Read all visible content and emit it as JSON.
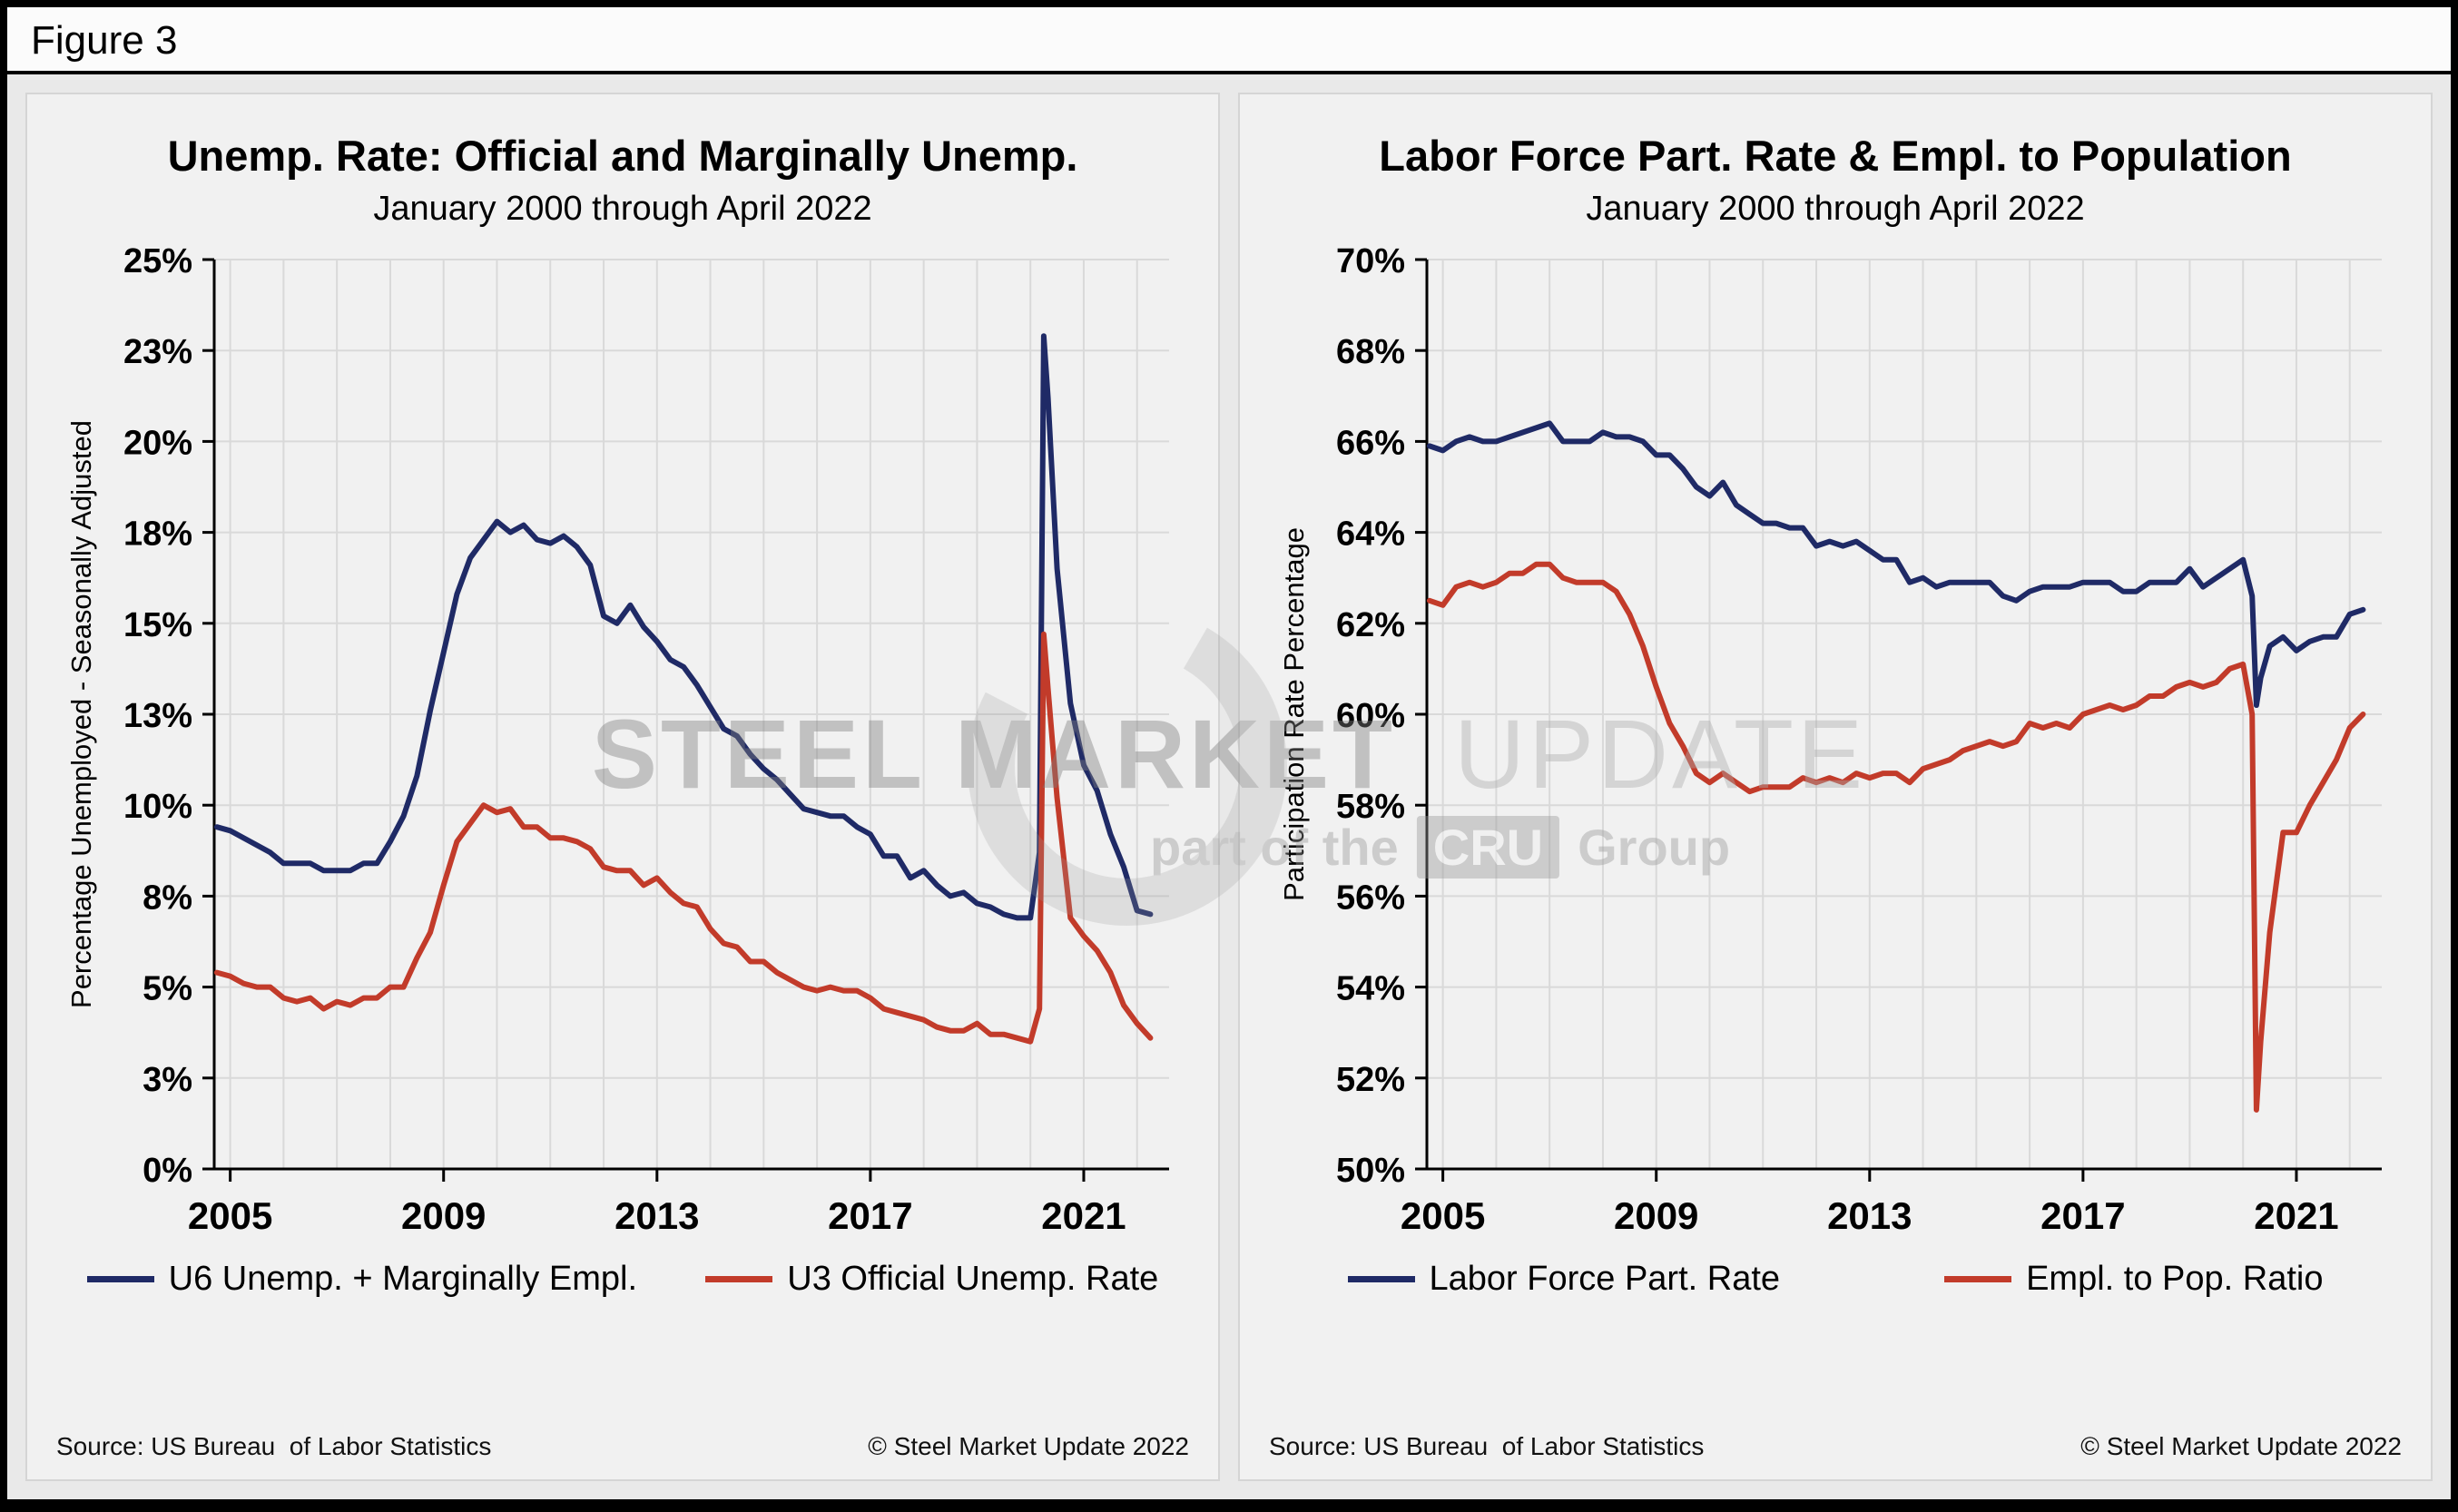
{
  "figure_label": "Figure 3",
  "watermark": {
    "steel_market": "STEEL MARKET",
    "update": "UPDATE",
    "part_of_the": "part of the",
    "cru": "CRU",
    "group": "Group"
  },
  "colors": {
    "navy": "#1F2A66",
    "red": "#C23B2A",
    "grid": "#d9d9d9",
    "axis": "#000000"
  },
  "chart_data": [
    {
      "type": "line",
      "title": "Unemp. Rate: Official and Marginally Unemp.",
      "subtitle": "January 2000 through April 2022",
      "xlabel": "",
      "ylabel": "Percentage Unemployed - Seasonally Adjusted",
      "source": "Source: US Bureau  of Labor Statistics",
      "copyright": "© Steel Market Update 2022",
      "grid": true,
      "legend_position": "bottom",
      "xlim": [
        2004.7,
        2022.6
      ],
      "ylim": [
        0,
        25
      ],
      "yticks": [
        0,
        2.5,
        5,
        7.5,
        10,
        12.5,
        15,
        17.5,
        20,
        22.5,
        25
      ],
      "ytick_labels": [
        "0%",
        "3%",
        "5%",
        "8%",
        "10%",
        "13%",
        "15%",
        "18%",
        "20%",
        "23%",
        "25%"
      ],
      "xticks": [
        2005,
        2009,
        2013,
        2017,
        2021
      ],
      "x": [
        2004.75,
        2005.0,
        2005.25,
        2005.5,
        2005.75,
        2006.0,
        2006.25,
        2006.5,
        2006.75,
        2007.0,
        2007.25,
        2007.5,
        2007.75,
        2008.0,
        2008.25,
        2008.5,
        2008.75,
        2009.0,
        2009.25,
        2009.5,
        2009.75,
        2010.0,
        2010.25,
        2010.5,
        2010.75,
        2011.0,
        2011.25,
        2011.5,
        2011.75,
        2012.0,
        2012.25,
        2012.5,
        2012.75,
        2013.0,
        2013.25,
        2013.5,
        2013.75,
        2014.0,
        2014.25,
        2014.5,
        2014.75,
        2015.0,
        2015.25,
        2015.5,
        2015.75,
        2016.0,
        2016.25,
        2016.5,
        2016.75,
        2017.0,
        2017.25,
        2017.5,
        2017.75,
        2018.0,
        2018.25,
        2018.5,
        2018.75,
        2019.0,
        2019.25,
        2019.5,
        2019.75,
        2020.0,
        2020.17,
        2020.25,
        2020.33,
        2020.5,
        2020.75,
        2021.0,
        2021.25,
        2021.5,
        2021.75,
        2022.0,
        2022.25
      ],
      "series": [
        {
          "name": "U6 Unemp. + Marginally Empl.",
          "color": "#1F2A66",
          "values": [
            9.4,
            9.3,
            9.1,
            8.9,
            8.7,
            8.4,
            8.4,
            8.4,
            8.2,
            8.2,
            8.2,
            8.4,
            8.4,
            9.0,
            9.7,
            10.8,
            12.6,
            14.2,
            15.8,
            16.8,
            17.3,
            17.8,
            17.5,
            17.7,
            17.3,
            17.2,
            17.4,
            17.1,
            16.6,
            15.2,
            15.0,
            15.5,
            14.9,
            14.5,
            14.0,
            13.8,
            13.3,
            12.7,
            12.1,
            11.9,
            11.4,
            11.0,
            10.7,
            10.3,
            9.9,
            9.8,
            9.7,
            9.7,
            9.4,
            9.2,
            8.6,
            8.6,
            8.0,
            8.2,
            7.8,
            7.5,
            7.6,
            7.3,
            7.2,
            7.0,
            6.9,
            6.9,
            8.7,
            22.9,
            21.2,
            16.5,
            12.8,
            11.1,
            10.4,
            9.2,
            8.3,
            7.1,
            7.0
          ]
        },
        {
          "name": "U3 Official Unemp. Rate",
          "color": "#C23B2A",
          "values": [
            5.4,
            5.3,
            5.1,
            5.0,
            5.0,
            4.7,
            4.6,
            4.7,
            4.4,
            4.6,
            4.5,
            4.7,
            4.7,
            5.0,
            5.0,
            5.8,
            6.5,
            7.8,
            9.0,
            9.5,
            10.0,
            9.8,
            9.9,
            9.4,
            9.4,
            9.1,
            9.1,
            9.0,
            8.8,
            8.3,
            8.2,
            8.2,
            7.8,
            8.0,
            7.6,
            7.3,
            7.2,
            6.6,
            6.2,
            6.1,
            5.7,
            5.7,
            5.4,
            5.2,
            5.0,
            4.9,
            5.0,
            4.9,
            4.9,
            4.7,
            4.4,
            4.3,
            4.2,
            4.1,
            3.9,
            3.8,
            3.8,
            4.0,
            3.7,
            3.7,
            3.6,
            3.5,
            4.4,
            14.7,
            13.2,
            10.2,
            6.9,
            6.4,
            6.0,
            5.4,
            4.5,
            4.0,
            3.6
          ]
        }
      ]
    },
    {
      "type": "line",
      "title": "Labor Force Part. Rate & Empl. to Population",
      "subtitle": "January 2000 through April 2022",
      "xlabel": "",
      "ylabel": "Participation Rate Percentage",
      "source": "Source: US Bureau  of Labor Statistics",
      "copyright": "© Steel Market Update 2022",
      "grid": true,
      "legend_position": "bottom",
      "xlim": [
        2004.7,
        2022.6
      ],
      "ylim": [
        50,
        70
      ],
      "yticks": [
        50,
        52,
        54,
        56,
        58,
        60,
        62,
        64,
        66,
        68,
        70
      ],
      "ytick_labels": [
        "50%",
        "52%",
        "54%",
        "56%",
        "58%",
        "60%",
        "62%",
        "64%",
        "66%",
        "68%",
        "70%"
      ],
      "xticks": [
        2005,
        2009,
        2013,
        2017,
        2021
      ],
      "x": [
        2004.75,
        2005.0,
        2005.25,
        2005.5,
        2005.75,
        2006.0,
        2006.25,
        2006.5,
        2006.75,
        2007.0,
        2007.25,
        2007.5,
        2007.75,
        2008.0,
        2008.25,
        2008.5,
        2008.75,
        2009.0,
        2009.25,
        2009.5,
        2009.75,
        2010.0,
        2010.25,
        2010.5,
        2010.75,
        2011.0,
        2011.25,
        2011.5,
        2011.75,
        2012.0,
        2012.25,
        2012.5,
        2012.75,
        2013.0,
        2013.25,
        2013.5,
        2013.75,
        2014.0,
        2014.25,
        2014.5,
        2014.75,
        2015.0,
        2015.25,
        2015.5,
        2015.75,
        2016.0,
        2016.25,
        2016.5,
        2016.75,
        2017.0,
        2017.25,
        2017.5,
        2017.75,
        2018.0,
        2018.25,
        2018.5,
        2018.75,
        2019.0,
        2019.25,
        2019.5,
        2019.75,
        2020.0,
        2020.17,
        2020.25,
        2020.33,
        2020.5,
        2020.75,
        2021.0,
        2021.25,
        2021.5,
        2021.75,
        2022.0,
        2022.25
      ],
      "series": [
        {
          "name": "Labor Force Part. Rate",
          "color": "#1F2A66",
          "values": [
            65.9,
            65.8,
            66.0,
            66.1,
            66.0,
            66.0,
            66.1,
            66.2,
            66.3,
            66.4,
            66.0,
            66.0,
            66.0,
            66.2,
            66.1,
            66.1,
            66.0,
            65.7,
            65.7,
            65.4,
            65.0,
            64.8,
            65.1,
            64.6,
            64.4,
            64.2,
            64.2,
            64.1,
            64.1,
            63.7,
            63.8,
            63.7,
            63.8,
            63.6,
            63.4,
            63.4,
            62.9,
            63.0,
            62.8,
            62.9,
            62.9,
            62.9,
            62.9,
            62.6,
            62.5,
            62.7,
            62.8,
            62.8,
            62.8,
            62.9,
            62.9,
            62.9,
            62.7,
            62.7,
            62.9,
            62.9,
            62.9,
            63.2,
            62.8,
            63.0,
            63.2,
            63.4,
            62.6,
            60.2,
            60.8,
            61.5,
            61.7,
            61.4,
            61.6,
            61.7,
            61.7,
            62.2,
            62.3
          ]
        },
        {
          "name": "Empl. to Pop. Ratio",
          "color": "#C23B2A",
          "values": [
            62.5,
            62.4,
            62.8,
            62.9,
            62.8,
            62.9,
            63.1,
            63.1,
            63.3,
            63.3,
            63.0,
            62.9,
            62.9,
            62.9,
            62.7,
            62.2,
            61.5,
            60.6,
            59.8,
            59.3,
            58.7,
            58.5,
            58.7,
            58.5,
            58.3,
            58.4,
            58.4,
            58.4,
            58.6,
            58.5,
            58.6,
            58.5,
            58.7,
            58.6,
            58.7,
            58.7,
            58.5,
            58.8,
            58.9,
            59.0,
            59.2,
            59.3,
            59.4,
            59.3,
            59.4,
            59.8,
            59.7,
            59.8,
            59.7,
            60.0,
            60.1,
            60.2,
            60.1,
            60.2,
            60.4,
            60.4,
            60.6,
            60.7,
            60.6,
            60.7,
            61.0,
            61.1,
            60.0,
            51.3,
            52.8,
            55.2,
            57.4,
            57.4,
            58.0,
            58.5,
            59.0,
            59.7,
            60.0
          ]
        }
      ]
    }
  ]
}
